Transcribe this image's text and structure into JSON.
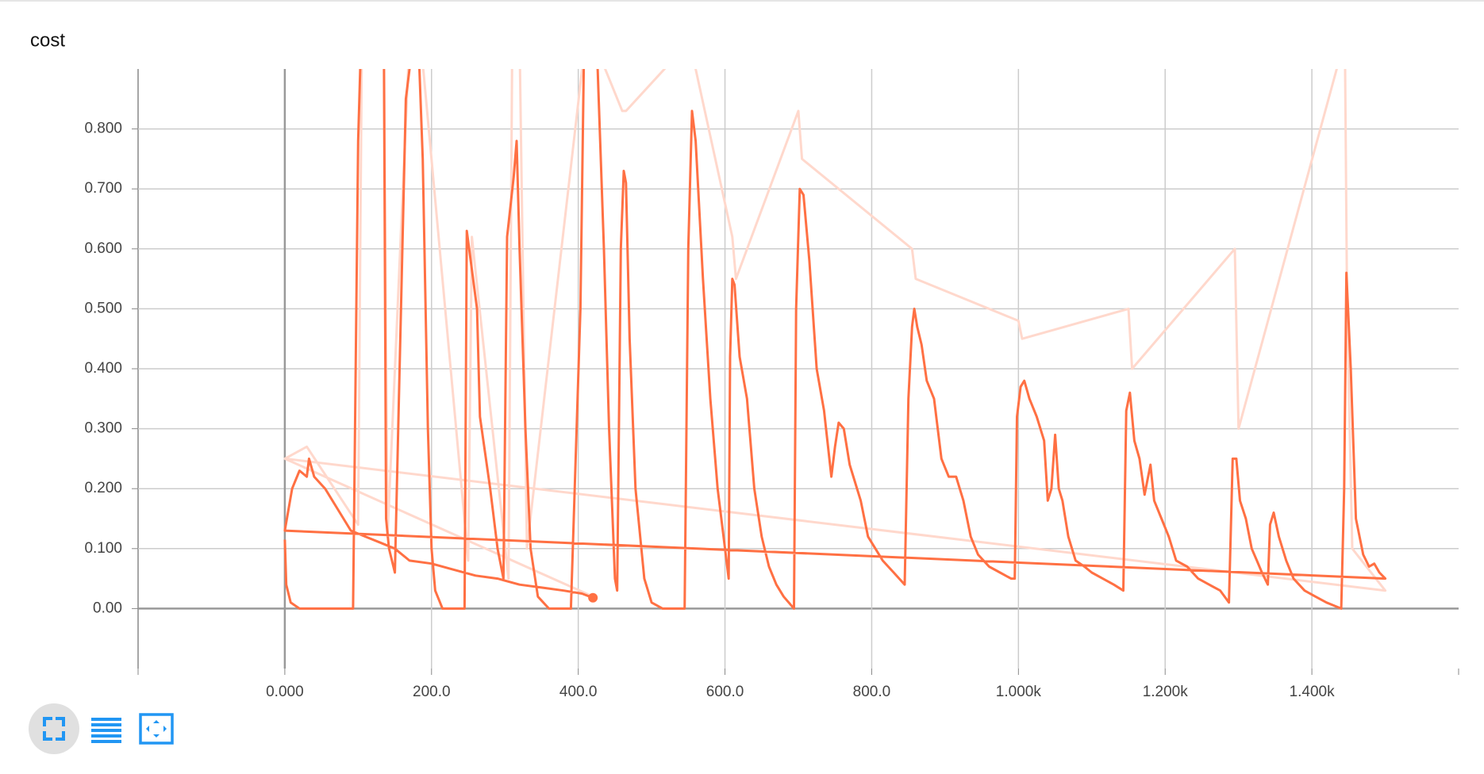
{
  "chart_data": {
    "type": "line",
    "title": "cost",
    "xlim": [
      -200,
      1600
    ],
    "xticks": [
      {
        "value": 0,
        "label": "0.000"
      },
      {
        "value": 200,
        "label": "200.0"
      },
      {
        "value": 400,
        "label": "400.0"
      },
      {
        "value": 600,
        "label": "600.0"
      },
      {
        "value": 800,
        "label": "800.0"
      },
      {
        "value": 1000,
        "label": "1.000k"
      },
      {
        "value": 1200,
        "label": "1.200k"
      },
      {
        "value": 1400,
        "label": "1.400k"
      }
    ],
    "ylim": [
      -0.1,
      0.9
    ],
    "yticks": [
      {
        "value": 0,
        "label": "0.00"
      },
      {
        "value": 0.1,
        "label": "0.100"
      },
      {
        "value": 0.2,
        "label": "0.200"
      },
      {
        "value": 0.3,
        "label": "0.300"
      },
      {
        "value": 0.4,
        "label": "0.400"
      },
      {
        "value": 0.5,
        "label": "0.500"
      },
      {
        "value": 0.6,
        "label": "0.600"
      },
      {
        "value": 0.7,
        "label": "0.700"
      },
      {
        "value": 0.8,
        "label": "0.800"
      }
    ],
    "grid": true,
    "series": [
      {
        "color": "#ffd8cc",
        "x": [
          0,
          30,
          100,
          105,
          135,
          140,
          170,
          185,
          250,
          255,
          305,
          310,
          320,
          330,
          410,
          420,
          460,
          465,
          555,
          560,
          610,
          615,
          700,
          705,
          855,
          860,
          1000,
          1005,
          1150,
          1155,
          1295,
          1300,
          1445,
          1448,
          1455,
          1500,
          0,
          420
        ],
        "values": [
          0.25,
          0.27,
          0.14,
          0.95,
          0.95,
          0.12,
          0.95,
          0.95,
          0.08,
          0.62,
          0.05,
          0.95,
          0.95,
          0.1,
          0.95,
          0.95,
          0.83,
          0.83,
          0.95,
          0.9,
          0.62,
          0.55,
          0.83,
          0.75,
          0.6,
          0.55,
          0.48,
          0.45,
          0.5,
          0.4,
          0.6,
          0.3,
          0.95,
          0.5,
          0.1,
          0.03,
          0.25,
          0.02
        ]
      },
      {
        "color": "#ff7043",
        "x": [
          0,
          2,
          8,
          20,
          93,
          100,
          104,
          135,
          138,
          142,
          150,
          165,
          175,
          182,
          188,
          195,
          200,
          205,
          215,
          245,
          248,
          262,
          266,
          280,
          290,
          298,
          303,
          312,
          316,
          320,
          328,
          335,
          345,
          360,
          390,
          403,
          408,
          425,
          435,
          442,
          450,
          453,
          458,
          462,
          465,
          470,
          478,
          490,
          500,
          515,
          545,
          550,
          555,
          560,
          570,
          580,
          590,
          600,
          605,
          607,
          610,
          613,
          620,
          630,
          640,
          650,
          660,
          670,
          680,
          694,
          697,
          702,
          707,
          715,
          725,
          735,
          745,
          750,
          755,
          762,
          770,
          785,
          795,
          805,
          815,
          830,
          845,
          850,
          855,
          858,
          862,
          868,
          875,
          885,
          895,
          905,
          915,
          925,
          935,
          945,
          960,
          975,
          990,
          995,
          998,
          1003,
          1008,
          1015,
          1025,
          1035,
          1040,
          1045,
          1050,
          1055,
          1060,
          1068,
          1078,
          1090,
          1100,
          1115,
          1130,
          1143,
          1147,
          1152,
          1158,
          1165,
          1172,
          1180,
          1185,
          1195,
          1205,
          1215,
          1230,
          1245,
          1260,
          1275,
          1287,
          1292,
          1297,
          1302,
          1310,
          1318,
          1325,
          1332,
          1340,
          1343,
          1348,
          1355,
          1365,
          1375,
          1390,
          1405,
          1420,
          1440,
          1444,
          1447,
          1453,
          1460,
          1470,
          1478,
          1485,
          1492,
          1500,
          0,
          10,
          20,
          30,
          33,
          40,
          55,
          70,
          90,
          110,
          130,
          150,
          170,
          200,
          230,
          260,
          290,
          320,
          350,
          380,
          405,
          420
        ],
        "values": [
          0.115,
          0.04,
          0.01,
          0.0,
          0.0,
          0.78,
          0.95,
          0.95,
          0.15,
          0.1,
          0.06,
          0.85,
          0.95,
          0.95,
          0.75,
          0.3,
          0.1,
          0.03,
          0.0,
          0.0,
          0.63,
          0.5,
          0.32,
          0.2,
          0.1,
          0.05,
          0.62,
          0.72,
          0.78,
          0.6,
          0.3,
          0.1,
          0.02,
          0.0,
          0.0,
          0.5,
          0.95,
          0.95,
          0.6,
          0.3,
          0.05,
          0.03,
          0.6,
          0.73,
          0.71,
          0.45,
          0.2,
          0.05,
          0.01,
          0.0,
          0.0,
          0.6,
          0.83,
          0.78,
          0.55,
          0.35,
          0.2,
          0.1,
          0.05,
          0.42,
          0.55,
          0.54,
          0.42,
          0.35,
          0.2,
          0.12,
          0.07,
          0.04,
          0.02,
          0.0,
          0.5,
          0.7,
          0.69,
          0.58,
          0.4,
          0.33,
          0.22,
          0.27,
          0.31,
          0.3,
          0.24,
          0.18,
          0.12,
          0.1,
          0.08,
          0.06,
          0.04,
          0.35,
          0.47,
          0.5,
          0.47,
          0.44,
          0.38,
          0.35,
          0.25,
          0.22,
          0.22,
          0.18,
          0.12,
          0.09,
          0.07,
          0.06,
          0.05,
          0.05,
          0.32,
          0.37,
          0.38,
          0.35,
          0.32,
          0.28,
          0.18,
          0.2,
          0.29,
          0.2,
          0.18,
          0.12,
          0.08,
          0.07,
          0.06,
          0.05,
          0.04,
          0.03,
          0.33,
          0.36,
          0.28,
          0.25,
          0.19,
          0.24,
          0.18,
          0.15,
          0.12,
          0.08,
          0.07,
          0.05,
          0.04,
          0.03,
          0.01,
          0.25,
          0.25,
          0.18,
          0.15,
          0.1,
          0.08,
          0.06,
          0.04,
          0.14,
          0.16,
          0.12,
          0.08,
          0.05,
          0.03,
          0.02,
          0.01,
          0.0,
          0.2,
          0.56,
          0.4,
          0.15,
          0.09,
          0.07,
          0.075,
          0.06,
          0.05,
          0.13,
          0.2,
          0.23,
          0.22,
          0.25,
          0.22,
          0.2,
          0.17,
          0.13,
          0.12,
          0.11,
          0.1,
          0.08,
          0.075,
          0.065,
          0.055,
          0.05,
          0.04,
          0.035,
          0.03,
          0.025,
          0.018
        ]
      }
    ]
  }
}
